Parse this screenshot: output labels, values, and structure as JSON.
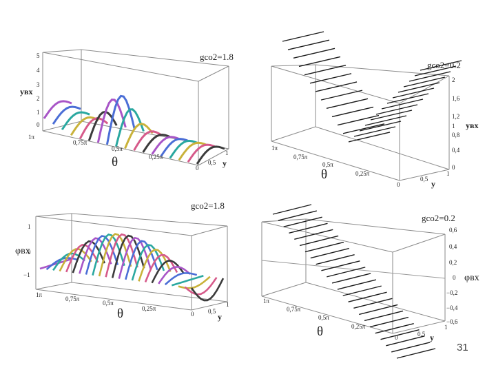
{
  "panels": [
    {
      "title": "gсо2=1.8",
      "zlabel": "yвх",
      "zticks": [
        "5",
        "4",
        "3",
        "2",
        "1",
        "0"
      ],
      "theta_ticks": [
        "1π",
        "0,75π",
        "0,5π",
        "0,25π",
        "0"
      ],
      "theta_label": "θ",
      "y_ticks": [
        "0,5",
        "1"
      ],
      "y_label": "y"
    },
    {
      "title": "gсо2=0.2",
      "zlabel": "yвх",
      "zticks": [
        "2",
        "1,6",
        "1,2",
        "1",
        "0,8",
        "0,4",
        "0"
      ],
      "theta_ticks": [
        "1π",
        "0,75π",
        "0,5π",
        "0,25π",
        "0"
      ],
      "theta_label": "θ",
      "y_ticks": [
        "0,5",
        "1"
      ],
      "y_label": "y"
    },
    {
      "title": "gсо2=1.8",
      "zlabel": "φвх",
      "zticks": [
        "1",
        "0",
        "−1"
      ],
      "theta_ticks": [
        "1π",
        "0,75π",
        "0,5π",
        "0,25π",
        "0"
      ],
      "theta_label": "θ",
      "y_ticks": [
        "0,5",
        "1"
      ],
      "y_label": "y"
    },
    {
      "title": "gсо2=0.2",
      "zlabel": "φвх",
      "zticks": [
        "0,6",
        "0,4",
        "0,2",
        "0",
        "−0,2",
        "−0,4",
        "−0,6"
      ],
      "theta_ticks": [
        "1π",
        "0,75π",
        "0,5π",
        "0,25π",
        "0"
      ],
      "theta_label": "θ",
      "y_ticks": [
        "0,5",
        "1"
      ],
      "y_label": "y"
    }
  ],
  "page_number": "31",
  "colors": {
    "axis": "#8a8a8a",
    "curve": "#1a1a1a",
    "rainbow": [
      "#a855c7",
      "#4b6ed6",
      "#2aa8a0",
      "#c9b23a",
      "#d65a8a",
      "#3b3b3b"
    ]
  }
}
